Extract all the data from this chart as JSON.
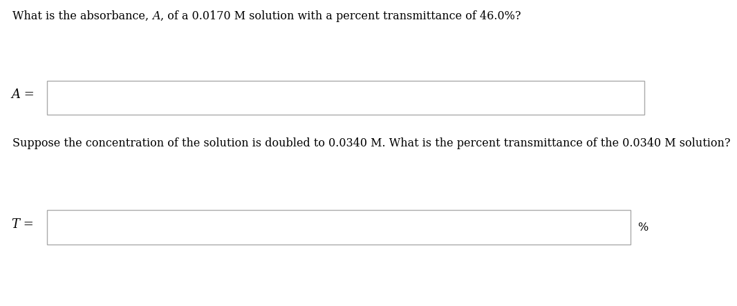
{
  "q1_part1": "What is the absorbance, ",
  "q1_italic": "A",
  "q1_part2": ", of a 0.0170 M solution with a percent transmittance of 46.0%?",
  "label1_italic": "A",
  "label1_eq": " =",
  "q2": "Suppose the concentration of the solution is doubled to 0.0340 M. What is the percent transmittance of the 0.0340 M solution?",
  "label2_italic": "T",
  "label2_eq": " =",
  "unit2": "%",
  "bg_color": "#ffffff",
  "box_edge_color": "#aaaaaa",
  "text_color": "#000000",
  "font_size": 11.5,
  "label_font_size": 13
}
